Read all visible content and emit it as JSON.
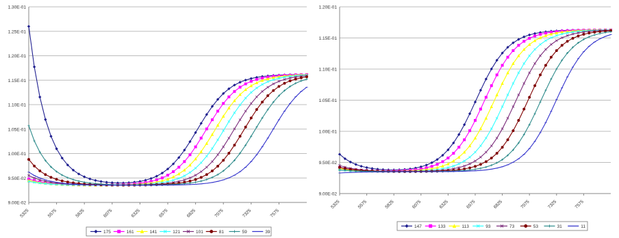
{
  "chart_data": [
    {
      "type": "line",
      "title": "",
      "xlabel": "",
      "ylabel": "",
      "grid": "horizontal",
      "legend_position": "bottom",
      "ylim": [
        0.09,
        0.13
      ],
      "xlim": [
        5325,
        7825
      ],
      "y_ticks": [
        "9.00E-02",
        "9.50E-02",
        "1.00E-01",
        "1.05E-01",
        "1.10E-01",
        "1.15E-01",
        "1.20E-01",
        "1.25E-01",
        "1.30E-01"
      ],
      "x_ticks": [
        "5325",
        "5575",
        "5825",
        "6075",
        "6325",
        "6575",
        "6825",
        "7075",
        "7325",
        "7575"
      ],
      "x_tick_values": [
        5325,
        5575,
        5825,
        6075,
        6325,
        6575,
        6825,
        7075,
        7325,
        7575
      ],
      "series": [
        {
          "name": "175",
          "color": "#1f1f8f",
          "marker": "diamond",
          "start": 0.126,
          "x50": 6840,
          "top": 0.1162
        },
        {
          "name": "161",
          "color": "#ff00ff",
          "marker": "square",
          "start": 0.0948,
          "x50": 6920,
          "top": 0.1162
        },
        {
          "name": "141",
          "color": "#ffff00",
          "marker": "triangle",
          "start": 0.0945,
          "x50": 7000,
          "top": 0.1162
        },
        {
          "name": "121",
          "color": "#33ffff",
          "marker": "x",
          "start": 0.0943,
          "x50": 7080,
          "top": 0.1162
        },
        {
          "name": "101",
          "color": "#7b2c7b",
          "marker": "x",
          "start": 0.0955,
          "x50": 7170,
          "top": 0.1162
        },
        {
          "name": "81",
          "color": "#7f0000",
          "marker": "circle",
          "start": 0.0988,
          "x50": 7260,
          "top": 0.1162
        },
        {
          "name": "59",
          "color": "#2e8b8b",
          "marker": "plus",
          "start": 0.1057,
          "x50": 7360,
          "top": 0.1162
        },
        {
          "name": "39",
          "color": "#3333cc",
          "marker": "dash",
          "start": 0.0962,
          "x50": 7520,
          "top": 0.1162
        }
      ]
    },
    {
      "type": "line",
      "title": "",
      "xlabel": "",
      "ylabel": "",
      "grid": "horizontal",
      "legend_position": "bottom",
      "ylim": [
        0.09,
        0.12
      ],
      "xlim": [
        5325,
        7825
      ],
      "y_ticks": [
        "9.00E-02",
        "9.50E-02",
        "1.00E-01",
        "1.05E-01",
        "1.10E-01",
        "1.15E-01",
        "1.20E-01"
      ],
      "x_ticks": [
        "5325",
        "5575",
        "5825",
        "6075",
        "6325",
        "6575",
        "6825",
        "7075",
        "7325",
        "7575"
      ],
      "x_tick_values": [
        5325,
        5575,
        5825,
        6075,
        6325,
        6575,
        6825,
        7075,
        7325,
        7575
      ],
      "series": [
        {
          "name": "147",
          "color": "#1f1f8f",
          "marker": "diamond",
          "start": 0.0963,
          "x50": 6580,
          "top": 0.1163
        },
        {
          "name": "133",
          "color": "#ff00ff",
          "marker": "square",
          "start": 0.0942,
          "x50": 6660,
          "top": 0.1163
        },
        {
          "name": "113",
          "color": "#ffff00",
          "marker": "triangle",
          "start": 0.094,
          "x50": 6750,
          "top": 0.1163
        },
        {
          "name": "93",
          "color": "#33ffff",
          "marker": "x",
          "start": 0.0938,
          "x50": 6850,
          "top": 0.1163
        },
        {
          "name": "73",
          "color": "#7b2c7b",
          "marker": "x",
          "start": 0.0945,
          "x50": 6950,
          "top": 0.1163
        },
        {
          "name": "53",
          "color": "#7f0000",
          "marker": "circle",
          "start": 0.0942,
          "x50": 7060,
          "top": 0.1163
        },
        {
          "name": "31",
          "color": "#2e8b8b",
          "marker": "plus",
          "start": 0.0938,
          "x50": 7180,
          "top": 0.1163
        },
        {
          "name": "11",
          "color": "#3333cc",
          "marker": "dash",
          "start": 0.0933,
          "x50": 7320,
          "top": 0.1163
        }
      ]
    }
  ]
}
